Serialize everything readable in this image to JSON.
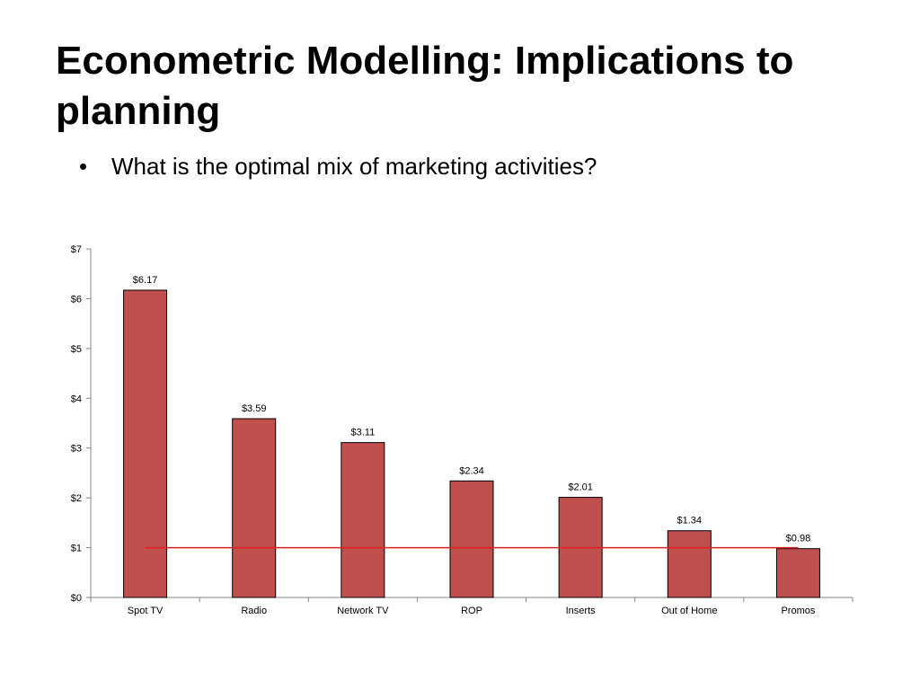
{
  "slide": {
    "title": "Econometric Modelling: Implications to planning",
    "bullets": [
      {
        "marker": "•",
        "text": "What is the optimal mix of marketing activities?"
      }
    ]
  },
  "colors": {
    "bar_fill": "#c0504d",
    "bar_stroke": "#000000",
    "reference_line": "#e02020",
    "axis": "#868686",
    "text": "#000000"
  },
  "chart_data": {
    "type": "bar",
    "title": "",
    "xlabel": "",
    "ylabel": "",
    "categories": [
      "Spot TV",
      "Radio",
      "Network TV",
      "ROP",
      "Inserts",
      "Out of Home",
      "Promos"
    ],
    "values": [
      6.17,
      3.59,
      3.11,
      2.34,
      2.01,
      1.34,
      0.98
    ],
    "data_labels": [
      "$6.17",
      "$3.59",
      "$3.11",
      "$2.34",
      "$2.01",
      "$1.34",
      "$0.98"
    ],
    "ylim": [
      0,
      7
    ],
    "yticks": [
      0,
      1,
      2,
      3,
      4,
      5,
      6,
      7
    ],
    "ytick_labels": [
      "$0",
      "$1",
      "$2",
      "$3",
      "$4",
      "$5",
      "$6",
      "$7"
    ],
    "reference_line": {
      "y": 1
    },
    "grid": false,
    "legend": "none"
  }
}
